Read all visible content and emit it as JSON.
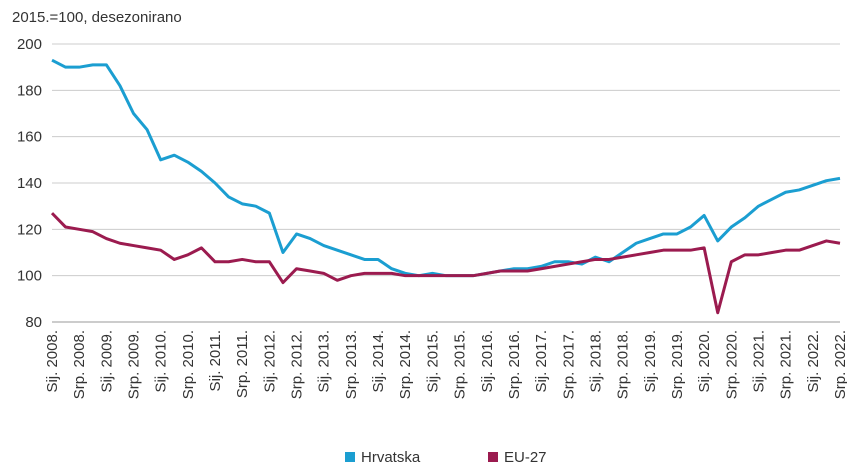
{
  "chart_data": {
    "type": "line",
    "subtitle": "2015.=100, desezonirano",
    "categories": [
      "Sij. 2008.",
      null,
      "Srp. 2008.",
      null,
      "Sij. 2009.",
      null,
      "Srp. 2009.",
      null,
      "Sij. 2010.",
      null,
      "Srp. 2010.",
      null,
      "Sij. 2011.",
      null,
      "Srp. 2011.",
      null,
      "Sij. 2012.",
      null,
      "Srp. 2012.",
      null,
      "Sij. 2013.",
      null,
      "Srp. 2013.",
      null,
      "Sij. 2014.",
      null,
      "Srp. 2014.",
      null,
      "Sij. 2015.",
      null,
      "Srp. 2015.",
      null,
      "Sij. 2016.",
      null,
      "Srp. 2016.",
      null,
      "Sij. 2017.",
      null,
      "Srp. 2017.",
      null,
      "Sij. 2018.",
      null,
      "Srp. 2018.",
      null,
      "Sij. 2019.",
      null,
      "Srp. 2019.",
      null,
      "Sij. 2020.",
      null,
      "Srp. 2020.",
      null,
      "Sij. 2021.",
      null,
      "Srp. 2021.",
      null,
      "Sij. 2022.",
      null,
      "Srp. 2022."
    ],
    "series": [
      {
        "name": "Hrvatska",
        "color": "#1b9ed1",
        "values": [
          193,
          190,
          190,
          191,
          191,
          182,
          170,
          163,
          150,
          152,
          149,
          145,
          140,
          134,
          131,
          130,
          127,
          110,
          118,
          116,
          113,
          111,
          109,
          107,
          107,
          103,
          101,
          100,
          101,
          100,
          100,
          100,
          101,
          102,
          103,
          103,
          104,
          106,
          106,
          105,
          108,
          106,
          110,
          114,
          116,
          118,
          118,
          121,
          126,
          115,
          121,
          125,
          130,
          133,
          136,
          137,
          139,
          141,
          142
        ]
      },
      {
        "name": "EU-27",
        "color": "#9b1b4f",
        "values": [
          127,
          121,
          120,
          119,
          116,
          114,
          113,
          112,
          111,
          107,
          109,
          112,
          106,
          106,
          107,
          106,
          106,
          97,
          103,
          102,
          101,
          98,
          100,
          101,
          101,
          101,
          100,
          100,
          100,
          100,
          100,
          100,
          101,
          102,
          102,
          102,
          103,
          104,
          105,
          106,
          107,
          107,
          108,
          109,
          110,
          111,
          111,
          111,
          112,
          84,
          106,
          109,
          109,
          110,
          111,
          111,
          113,
          115,
          114
        ]
      }
    ],
    "ylim": [
      80,
      200
    ],
    "yticks": [
      80,
      100,
      120,
      140,
      160,
      180,
      200
    ],
    "grid": true,
    "legend": "bottom"
  }
}
